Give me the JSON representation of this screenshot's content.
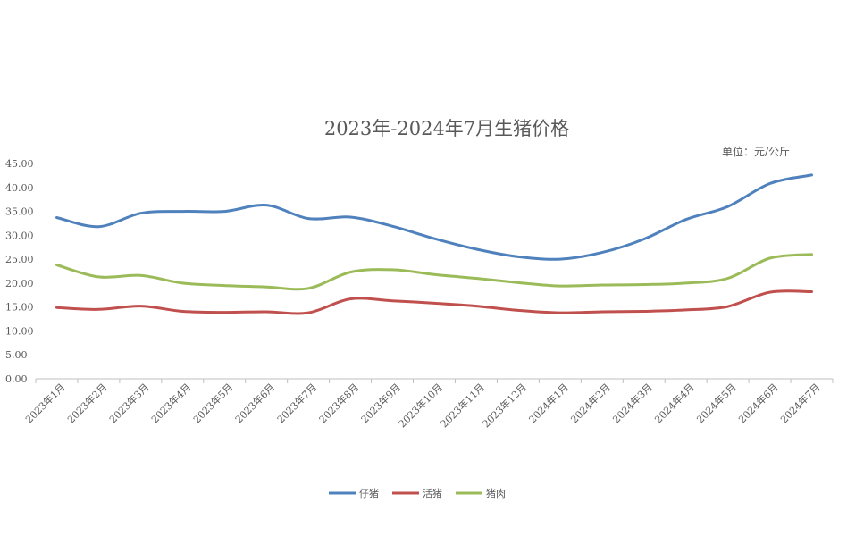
{
  "chart_data": {
    "type": "line",
    "title": "2023年-2024年7月生猪价格",
    "unit_label": "单位：元/公斤",
    "categories": [
      "2023年1月",
      "2023年2月",
      "2023年3月",
      "2023年4月",
      "2023年5月",
      "2023年6月",
      "2023年7月",
      "2023年8月",
      "2023年9月",
      "2023年10月",
      "2023年11月",
      "2023年12月",
      "2024年1月",
      "2024年2月",
      "2024年3月",
      "2024年4月",
      "2024年5月",
      "2024年6月",
      "2024年7月"
    ],
    "ylim": [
      0,
      45
    ],
    "yticks": [
      "0.00",
      "5.00",
      "10.00",
      "15.00",
      "20.00",
      "25.00",
      "30.00",
      "35.00",
      "40.00",
      "45.00"
    ],
    "grid": false,
    "legend_position": "bottom",
    "series": [
      {
        "name": "仔猪",
        "color": "#4f81bd",
        "values": [
          33.7,
          31.8,
          34.6,
          35.0,
          35.0,
          36.3,
          33.5,
          33.8,
          31.9,
          29.3,
          27.1,
          25.5,
          25.0,
          26.4,
          29.2,
          33.3,
          36.0,
          40.8,
          42.6
        ]
      },
      {
        "name": "活猪",
        "color": "#c0504d",
        "values": [
          14.9,
          14.5,
          15.2,
          14.1,
          13.9,
          14.0,
          13.8,
          16.7,
          16.3,
          15.8,
          15.2,
          14.3,
          13.8,
          14.0,
          14.1,
          14.4,
          15.1,
          18.1,
          18.2
        ]
      },
      {
        "name": "猪肉",
        "color": "#9bbb59",
        "values": [
          23.8,
          21.3,
          21.6,
          20.0,
          19.5,
          19.2,
          18.9,
          22.3,
          22.8,
          21.8,
          21.0,
          20.1,
          19.4,
          19.6,
          19.7,
          20.0,
          21.0,
          25.2,
          26.0
        ]
      }
    ]
  }
}
